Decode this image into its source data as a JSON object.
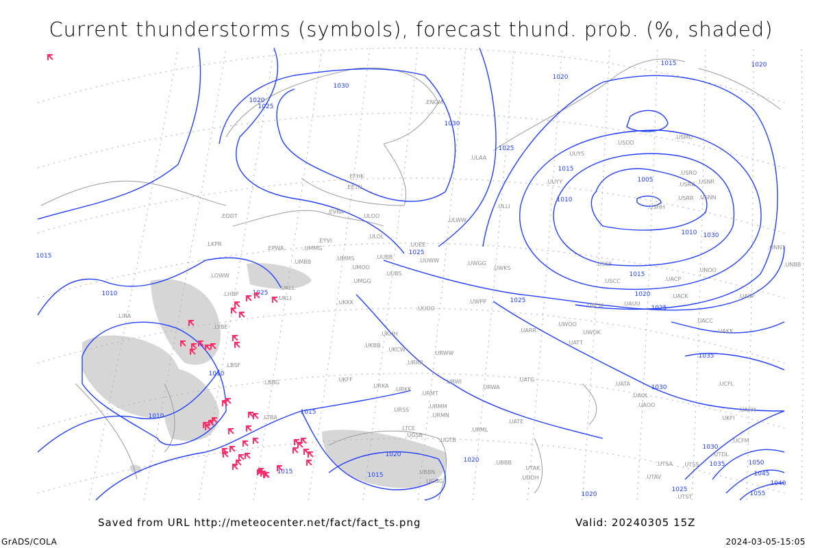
{
  "title": "Current thunderstorms (symbols), forecast thund. prob. (%, shaded)",
  "footer": {
    "source": "Saved from URL http://meteocenter.net/fact/fact_ts.png",
    "valid": "Valid: 20240305 15Z",
    "software": "GrADS/COLA",
    "generated": "2024-03-05-15:05"
  },
  "colors": {
    "isobar": "#1f3cff",
    "coastline": "#9a9a9a",
    "thunderstorm_symbol": "#ff2d6a",
    "shading": "#d6d6d6"
  },
  "isobar_labels": [
    "1015",
    "1020",
    "1020",
    "1025",
    "1030",
    "1030",
    "1025",
    "1020",
    "1015",
    "1010",
    "1005",
    "1010",
    "1015",
    "1015",
    "1020",
    "1025",
    "1030",
    "1035",
    "1030",
    "1025",
    "1010",
    "1010",
    "1010",
    "1015",
    "1015",
    "1020",
    "1015",
    "1020",
    "1025",
    "1030",
    "1035",
    "1050",
    "1045",
    "1040",
    "1055",
    "1025",
    "1025",
    "1020"
  ],
  "stations": [
    "ULAA",
    "UUYS",
    "USDD",
    "USMU",
    "USRO",
    "USRK",
    "USNR",
    "USRR",
    "USNN",
    "USHH",
    "UUYY",
    "ULLI",
    "ULWW",
    "UUEE",
    "UUWW",
    "UWGG",
    "UWKS",
    "USSS",
    "USCC",
    "UACP",
    "UNOO",
    "UNNT",
    "UNBB",
    "UACK",
    "UASP",
    "UACC",
    "UAKK",
    "UAUU",
    "USCM",
    "UWOO",
    "UWOK",
    "UATT",
    "UARR",
    "UWPP",
    "UUOO",
    "UKKK",
    "UKHH",
    "UKFF",
    "UKBB",
    "UKCW",
    "URRR",
    "URWW",
    "URWI",
    "URWA",
    "UATG",
    "UATA",
    "UAOL",
    "UAOO",
    "UKFI",
    "URKA",
    "URKK",
    "URMT",
    "URMM",
    "URMN",
    "URML",
    "URSS",
    "UGSB",
    "UGTB",
    "UBBB",
    "UATE",
    "UTAK",
    "UTSS",
    "UTSA",
    "UTAV",
    "UTST",
    "UCFL",
    "UAFM",
    "UTDL",
    "UCFM",
    "ULOO",
    "ULOL",
    "UMMS",
    "UMOO",
    "UUBB",
    "UMGG",
    "UKLL",
    "UKLI",
    "UMBB",
    "UMMG",
    "EPWA",
    "EYVI",
    "EVRA",
    "EETN",
    "EFHK",
    "LKPR",
    "LOWW",
    "LHBP",
    "LYBE",
    "LBSF",
    "LBBG",
    "LIRA",
    "EDDT",
    "ENGM",
    "LTBA",
    "LTCE",
    "UDDH",
    "UGGG",
    "UBBN",
    "UUBS"
  ],
  "thunderstorm_count": 48
}
